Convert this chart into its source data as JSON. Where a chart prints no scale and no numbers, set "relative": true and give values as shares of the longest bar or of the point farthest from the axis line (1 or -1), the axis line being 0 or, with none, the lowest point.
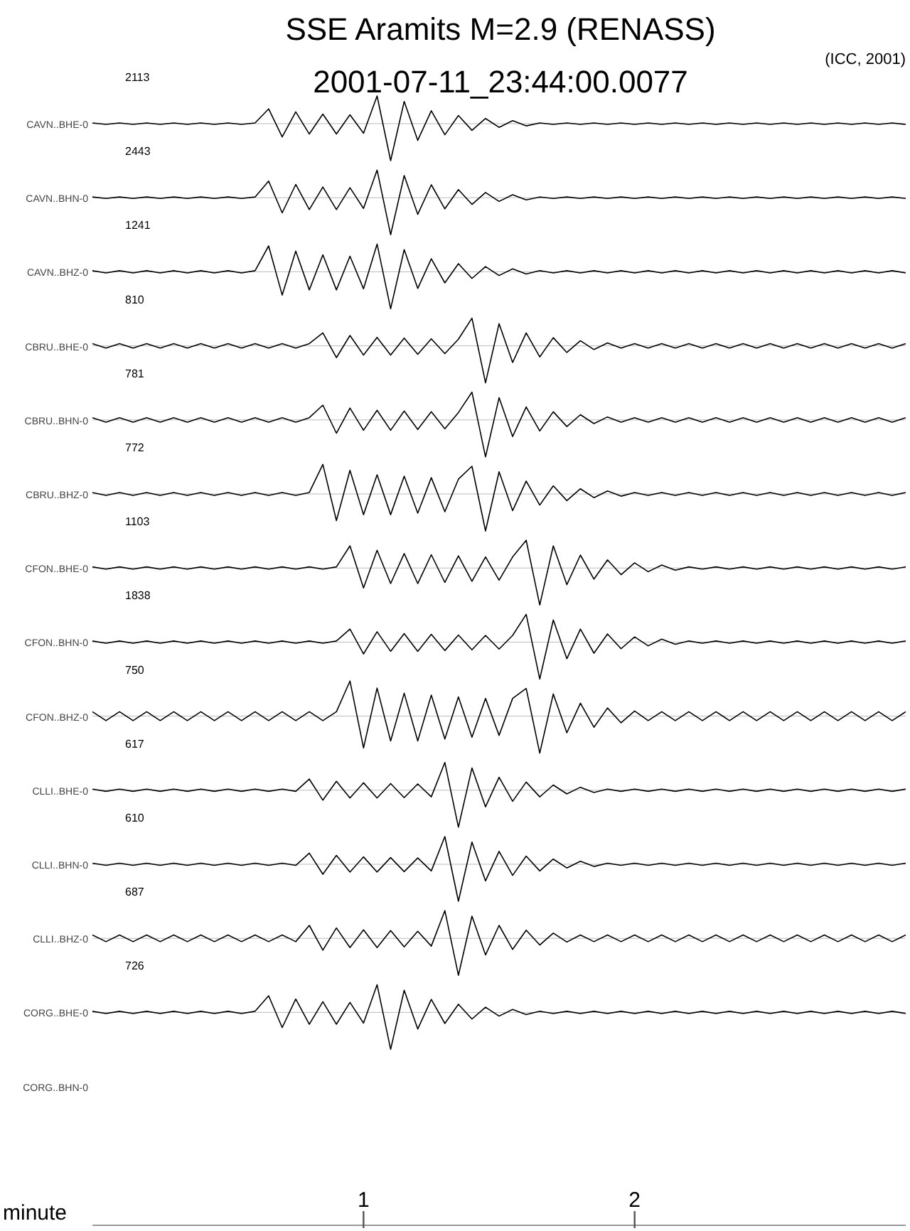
{
  "chart_data": [
    {
      "type": "line",
      "title": "SSE Aramits  M=2.9 (RENASS)",
      "subtitle": "2001-07-11_23:44:00.0077",
      "ylabel": "CAVN..BHE-0",
      "annotations": [
        "2113",
        "(ICC, 2001)"
      ],
      "relative": true,
      "xlim": [
        0,
        3
      ],
      "tick_labels": false,
      "x": [
        0,
        0.05,
        0.1,
        0.15,
        0.2,
        0.25,
        0.3,
        0.35,
        0.4,
        0.45,
        0.5,
        0.55,
        0.6,
        0.65,
        0.7,
        0.75,
        0.8,
        0.85,
        0.9,
        0.95,
        1,
        1.05,
        1.1,
        1.15,
        1.2,
        1.25,
        1.3,
        1.35,
        1.4,
        1.45,
        1.5,
        1.55,
        1.6,
        1.65,
        1.7,
        1.75,
        1.8,
        1.85,
        1.9,
        1.95,
        2,
        2.05,
        2.1,
        2.15,
        2.2,
        2.25,
        2.3,
        2.35,
        2.4,
        2.45,
        2.5,
        2.55,
        2.6,
        2.65,
        2.7,
        2.75,
        2.8,
        2.85,
        2.9,
        2.95,
        3
      ],
      "series": [
        {
          "color": "#000000",
          "values": [
            0.02,
            -0.02,
            0.02,
            -0.02,
            0.02,
            -0.02,
            0.02,
            -0.02,
            0.02,
            -0.02,
            0.02,
            -0.02,
            0.02,
            0.4,
            -0.36,
            0.32,
            -0.28,
            0.26,
            -0.28,
            0.24,
            -0.26,
            0.75,
            -1,
            0.6,
            -0.45,
            0.35,
            -0.3,
            0.22,
            -0.18,
            0.14,
            -0.1,
            0.08,
            -0.06,
            0.02,
            -0.02,
            0.02,
            -0.02,
            0.02,
            -0.02,
            0.02,
            -0.02,
            0.02,
            -0.02,
            0.02,
            -0.02,
            0.02,
            -0.02,
            0.02,
            -0.02,
            0.02,
            -0.02,
            0.02,
            -0.02,
            0.02,
            -0.02,
            0.02,
            -0.02,
            0.02,
            -0.02,
            0.02,
            -0.02
          ]
        }
      ]
    },
    {
      "type": "line",
      "ylabel": "CAVN..BHN-0",
      "annotations": [
        "2443"
      ],
      "relative": true,
      "xlim": [
        0,
        3
      ],
      "tick_labels": false,
      "x": [
        0,
        0.05,
        0.1,
        0.15,
        0.2,
        0.25,
        0.3,
        0.35,
        0.4,
        0.45,
        0.5,
        0.55,
        0.6,
        0.65,
        0.7,
        0.75,
        0.8,
        0.85,
        0.9,
        0.95,
        1,
        1.05,
        1.1,
        1.15,
        1.2,
        1.25,
        1.3,
        1.35,
        1.4,
        1.45,
        1.5,
        1.55,
        1.6,
        1.65,
        1.7,
        1.75,
        1.8,
        1.85,
        1.9,
        1.95,
        2,
        2.05,
        2.1,
        2.15,
        2.2,
        2.25,
        2.3,
        2.35,
        2.4,
        2.45,
        2.5,
        2.55,
        2.6,
        2.65,
        2.7,
        2.75,
        2.8,
        2.85,
        2.9,
        2.95,
        3
      ],
      "series": [
        {
          "color": "#000000",
          "values": [
            0.02,
            -0.02,
            0.02,
            -0.02,
            0.02,
            -0.02,
            0.02,
            -0.02,
            0.02,
            -0.02,
            0.02,
            -0.02,
            0.02,
            0.45,
            -0.41,
            0.36,
            -0.32,
            0.29,
            -0.32,
            0.27,
            -0.29,
            0.75,
            -1,
            0.6,
            -0.45,
            0.35,
            -0.3,
            0.22,
            -0.18,
            0.14,
            -0.1,
            0.08,
            -0.06,
            0.02,
            -0.02,
            0.02,
            -0.02,
            0.02,
            -0.02,
            0.02,
            -0.02,
            0.02,
            -0.02,
            0.02,
            -0.02,
            0.02,
            -0.02,
            0.02,
            -0.02,
            0.02,
            -0.02,
            0.02,
            -0.02,
            0.02,
            -0.02,
            0.02,
            -0.02,
            0.02,
            -0.02,
            0.02,
            -0.02
          ]
        }
      ]
    },
    {
      "type": "line",
      "ylabel": "CAVN..BHZ-0",
      "annotations": [
        "1241"
      ],
      "relative": true,
      "xlim": [
        0,
        3
      ],
      "tick_labels": false,
      "x": [
        0,
        0.05,
        0.1,
        0.15,
        0.2,
        0.25,
        0.3,
        0.35,
        0.4,
        0.45,
        0.5,
        0.55,
        0.6,
        0.65,
        0.7,
        0.75,
        0.8,
        0.85,
        0.9,
        0.95,
        1,
        1.05,
        1.1,
        1.15,
        1.2,
        1.25,
        1.3,
        1.35,
        1.4,
        1.45,
        1.5,
        1.55,
        1.6,
        1.65,
        1.7,
        1.75,
        1.8,
        1.85,
        1.9,
        1.95,
        2,
        2.05,
        2.1,
        2.15,
        2.2,
        2.25,
        2.3,
        2.35,
        2.4,
        2.45,
        2.5,
        2.55,
        2.6,
        2.65,
        2.7,
        2.75,
        2.8,
        2.85,
        2.9,
        2.95,
        3
      ],
      "series": [
        {
          "color": "#000000",
          "values": [
            0.03,
            -0.03,
            0.03,
            -0.03,
            0.03,
            -0.03,
            0.03,
            -0.03,
            0.03,
            -0.03,
            0.03,
            -0.03,
            0.03,
            0.7,
            -0.63,
            0.56,
            -0.49,
            0.46,
            -0.49,
            0.42,
            -0.46,
            0.75,
            -1,
            0.6,
            -0.45,
            0.35,
            -0.3,
            0.22,
            -0.18,
            0.14,
            -0.1,
            0.08,
            -0.06,
            0.03,
            -0.03,
            0.03,
            -0.03,
            0.03,
            -0.03,
            0.03,
            -0.03,
            0.03,
            -0.03,
            0.03,
            -0.03,
            0.03,
            -0.03,
            0.03,
            -0.03,
            0.03,
            -0.03,
            0.03,
            -0.03,
            0.03,
            -0.03,
            0.03,
            -0.03,
            0.03,
            -0.03,
            0.03,
            -0.03
          ]
        }
      ]
    },
    {
      "type": "line",
      "ylabel": "CBRU..BHE-0",
      "annotations": [
        "810"
      ],
      "relative": true,
      "xlim": [
        0,
        3
      ],
      "tick_labels": false,
      "x": [
        0,
        0.05,
        0.1,
        0.15,
        0.2,
        0.25,
        0.3,
        0.35,
        0.4,
        0.45,
        0.5,
        0.55,
        0.6,
        0.65,
        0.7,
        0.75,
        0.8,
        0.85,
        0.9,
        0.95,
        1,
        1.05,
        1.1,
        1.15,
        1.2,
        1.25,
        1.3,
        1.35,
        1.4,
        1.45,
        1.5,
        1.55,
        1.6,
        1.65,
        1.7,
        1.75,
        1.8,
        1.85,
        1.9,
        1.95,
        2,
        2.05,
        2.1,
        2.15,
        2.2,
        2.25,
        2.3,
        2.35,
        2.4,
        2.45,
        2.5,
        2.55,
        2.6,
        2.65,
        2.7,
        2.75,
        2.8,
        2.85,
        2.9,
        2.95,
        3
      ],
      "series": [
        {
          "color": "#000000",
          "values": [
            0.06,
            -0.06,
            0.06,
            -0.06,
            0.06,
            -0.06,
            0.06,
            -0.06,
            0.06,
            -0.06,
            0.06,
            -0.06,
            0.06,
            -0.06,
            0.06,
            -0.06,
            0.06,
            0.35,
            -0.32,
            0.28,
            -0.25,
            0.23,
            -0.25,
            0.21,
            -0.23,
            0.19,
            -0.21,
            0.18,
            0.75,
            -1,
            0.6,
            -0.45,
            0.35,
            -0.3,
            0.22,
            -0.18,
            0.14,
            -0.1,
            0.08,
            -0.06,
            0.06,
            -0.06,
            0.06,
            -0.06,
            0.06,
            -0.06,
            0.06,
            -0.06,
            0.06,
            -0.06,
            0.06,
            -0.06,
            0.06,
            -0.06,
            0.06,
            -0.06,
            0.06,
            -0.06,
            0.06,
            -0.06,
            0.06
          ]
        }
      ]
    },
    {
      "type": "line",
      "ylabel": "CBRU..BHN-0",
      "annotations": [
        "781"
      ],
      "relative": true,
      "xlim": [
        0,
        3
      ],
      "tick_labels": false,
      "x": [
        0,
        0.05,
        0.1,
        0.15,
        0.2,
        0.25,
        0.3,
        0.35,
        0.4,
        0.45,
        0.5,
        0.55,
        0.6,
        0.65,
        0.7,
        0.75,
        0.8,
        0.85,
        0.9,
        0.95,
        1,
        1.05,
        1.1,
        1.15,
        1.2,
        1.25,
        1.3,
        1.35,
        1.4,
        1.45,
        1.5,
        1.55,
        1.6,
        1.65,
        1.7,
        1.75,
        1.8,
        1.85,
        1.9,
        1.95,
        2,
        2.05,
        2.1,
        2.15,
        2.2,
        2.25,
        2.3,
        2.35,
        2.4,
        2.45,
        2.5,
        2.55,
        2.6,
        2.65,
        2.7,
        2.75,
        2.8,
        2.85,
        2.9,
        2.95,
        3
      ],
      "series": [
        {
          "color": "#000000",
          "values": [
            0.06,
            -0.06,
            0.06,
            -0.06,
            0.06,
            -0.06,
            0.06,
            -0.06,
            0.06,
            -0.06,
            0.06,
            -0.06,
            0.06,
            -0.06,
            0.06,
            -0.06,
            0.06,
            0.4,
            -0.36,
            0.32,
            -0.28,
            0.26,
            -0.28,
            0.24,
            -0.26,
            0.22,
            -0.24,
            0.2,
            0.75,
            -1,
            0.6,
            -0.45,
            0.35,
            -0.3,
            0.22,
            -0.18,
            0.14,
            -0.1,
            0.08,
            -0.06,
            0.06,
            -0.06,
            0.06,
            -0.06,
            0.06,
            -0.06,
            0.06,
            -0.06,
            0.06,
            -0.06,
            0.06,
            -0.06,
            0.06,
            -0.06,
            0.06,
            -0.06,
            0.06,
            -0.06,
            0.06,
            -0.06,
            0.06
          ]
        }
      ]
    },
    {
      "type": "line",
      "ylabel": "CBRU..BHZ-0",
      "annotations": [
        "772"
      ],
      "relative": true,
      "xlim": [
        0,
        3
      ],
      "tick_labels": false,
      "x": [
        0,
        0.05,
        0.1,
        0.15,
        0.2,
        0.25,
        0.3,
        0.35,
        0.4,
        0.45,
        0.5,
        0.55,
        0.6,
        0.65,
        0.7,
        0.75,
        0.8,
        0.85,
        0.9,
        0.95,
        1,
        1.05,
        1.1,
        1.15,
        1.2,
        1.25,
        1.3,
        1.35,
        1.4,
        1.45,
        1.5,
        1.55,
        1.6,
        1.65,
        1.7,
        1.75,
        1.8,
        1.85,
        1.9,
        1.95,
        2,
        2.05,
        2.1,
        2.15,
        2.2,
        2.25,
        2.3,
        2.35,
        2.4,
        2.45,
        2.5,
        2.55,
        2.6,
        2.65,
        2.7,
        2.75,
        2.8,
        2.85,
        2.9,
        2.95,
        3
      ],
      "series": [
        {
          "color": "#000000",
          "values": [
            0.04,
            -0.04,
            0.04,
            -0.04,
            0.04,
            -0.04,
            0.04,
            -0.04,
            0.04,
            -0.04,
            0.04,
            -0.04,
            0.04,
            -0.04,
            0.04,
            -0.04,
            0.04,
            0.8,
            -0.72,
            0.64,
            -0.56,
            0.52,
            -0.56,
            0.48,
            -0.52,
            0.44,
            -0.48,
            0.4,
            0.75,
            -1,
            0.6,
            -0.45,
            0.35,
            -0.3,
            0.22,
            -0.18,
            0.14,
            -0.1,
            0.08,
            -0.06,
            0.04,
            -0.04,
            0.04,
            -0.04,
            0.04,
            -0.04,
            0.04,
            -0.04,
            0.04,
            -0.04,
            0.04,
            -0.04,
            0.04,
            -0.04,
            0.04,
            -0.04,
            0.04,
            -0.04,
            0.04,
            -0.04,
            0.04
          ]
        }
      ]
    },
    {
      "type": "line",
      "ylabel": "CFON..BHE-0",
      "annotations": [
        "1103"
      ],
      "relative": true,
      "xlim": [
        0,
        3
      ],
      "tick_labels": false,
      "x": [
        0,
        0.05,
        0.1,
        0.15,
        0.2,
        0.25,
        0.3,
        0.35,
        0.4,
        0.45,
        0.5,
        0.55,
        0.6,
        0.65,
        0.7,
        0.75,
        0.8,
        0.85,
        0.9,
        0.95,
        1,
        1.05,
        1.1,
        1.15,
        1.2,
        1.25,
        1.3,
        1.35,
        1.4,
        1.45,
        1.5,
        1.55,
        1.6,
        1.65,
        1.7,
        1.75,
        1.8,
        1.85,
        1.9,
        1.95,
        2,
        2.05,
        2.1,
        2.15,
        2.2,
        2.25,
        2.3,
        2.35,
        2.4,
        2.45,
        2.5,
        2.55,
        2.6,
        2.65,
        2.7,
        2.75,
        2.8,
        2.85,
        2.9,
        2.95,
        3
      ],
      "series": [
        {
          "color": "#000000",
          "values": [
            0.03,
            -0.03,
            0.03,
            -0.03,
            0.03,
            -0.03,
            0.03,
            -0.03,
            0.03,
            -0.03,
            0.03,
            -0.03,
            0.03,
            -0.03,
            0.03,
            -0.03,
            0.03,
            -0.03,
            0.03,
            0.6,
            -0.54,
            0.48,
            -0.42,
            0.39,
            -0.42,
            0.36,
            -0.39,
            0.33,
            -0.36,
            0.3,
            -0.33,
            0.3,
            0.75,
            -1,
            0.6,
            -0.45,
            0.35,
            -0.3,
            0.22,
            -0.18,
            0.14,
            -0.1,
            0.08,
            -0.06,
            0.03,
            -0.03,
            0.03,
            -0.03,
            0.03,
            -0.03,
            0.03,
            -0.03,
            0.03,
            -0.03,
            0.03,
            -0.03,
            0.03,
            -0.03,
            0.03,
            -0.03,
            0.03
          ]
        }
      ]
    },
    {
      "type": "line",
      "ylabel": "CFON..BHN-0",
      "annotations": [
        "1838"
      ],
      "relative": true,
      "xlim": [
        0,
        3
      ],
      "tick_labels": false,
      "x": [
        0,
        0.05,
        0.1,
        0.15,
        0.2,
        0.25,
        0.3,
        0.35,
        0.4,
        0.45,
        0.5,
        0.55,
        0.6,
        0.65,
        0.7,
        0.75,
        0.8,
        0.85,
        0.9,
        0.95,
        1,
        1.05,
        1.1,
        1.15,
        1.2,
        1.25,
        1.3,
        1.35,
        1.4,
        1.45,
        1.5,
        1.55,
        1.6,
        1.65,
        1.7,
        1.75,
        1.8,
        1.85,
        1.9,
        1.95,
        2,
        2.05,
        2.1,
        2.15,
        2.2,
        2.25,
        2.3,
        2.35,
        2.4,
        2.45,
        2.5,
        2.55,
        2.6,
        2.65,
        2.7,
        2.75,
        2.8,
        2.85,
        2.9,
        2.95,
        3
      ],
      "series": [
        {
          "color": "#000000",
          "values": [
            0.03,
            -0.03,
            0.03,
            -0.03,
            0.03,
            -0.03,
            0.03,
            -0.03,
            0.03,
            -0.03,
            0.03,
            -0.03,
            0.03,
            -0.03,
            0.03,
            -0.03,
            0.03,
            -0.03,
            0.03,
            0.35,
            -0.32,
            0.28,
            -0.25,
            0.23,
            -0.25,
            0.21,
            -0.23,
            0.19,
            -0.21,
            0.18,
            -0.19,
            0.18,
            0.75,
            -1,
            0.6,
            -0.45,
            0.35,
            -0.3,
            0.22,
            -0.18,
            0.14,
            -0.1,
            0.08,
            -0.06,
            0.03,
            -0.03,
            0.03,
            -0.03,
            0.03,
            -0.03,
            0.03,
            -0.03,
            0.03,
            -0.03,
            0.03,
            -0.03,
            0.03,
            -0.03,
            0.03,
            -0.03,
            0.03
          ]
        }
      ]
    },
    {
      "type": "line",
      "ylabel": "CFON..BHZ-0",
      "annotations": [
        "750"
      ],
      "relative": true,
      "xlim": [
        0,
        3
      ],
      "tick_labels": false,
      "x": [
        0,
        0.05,
        0.1,
        0.15,
        0.2,
        0.25,
        0.3,
        0.35,
        0.4,
        0.45,
        0.5,
        0.55,
        0.6,
        0.65,
        0.7,
        0.75,
        0.8,
        0.85,
        0.9,
        0.95,
        1,
        1.05,
        1.1,
        1.15,
        1.2,
        1.25,
        1.3,
        1.35,
        1.4,
        1.45,
        1.5,
        1.55,
        1.6,
        1.65,
        1.7,
        1.75,
        1.8,
        1.85,
        1.9,
        1.95,
        2,
        2.05,
        2.1,
        2.15,
        2.2,
        2.25,
        2.3,
        2.35,
        2.4,
        2.45,
        2.5,
        2.55,
        2.6,
        2.65,
        2.7,
        2.75,
        2.8,
        2.85,
        2.9,
        2.95,
        3
      ],
      "series": [
        {
          "color": "#000000",
          "values": [
            0.12,
            -0.12,
            0.12,
            -0.12,
            0.12,
            -0.12,
            0.12,
            -0.12,
            0.12,
            -0.12,
            0.12,
            -0.12,
            0.12,
            -0.12,
            0.12,
            -0.12,
            0.12,
            -0.12,
            0.12,
            0.95,
            -0.86,
            0.76,
            -0.67,
            0.62,
            -0.67,
            0.57,
            -0.62,
            0.52,
            -0.57,
            0.48,
            -0.52,
            0.48,
            0.75,
            -1,
            0.6,
            -0.45,
            0.35,
            -0.3,
            0.22,
            -0.18,
            0.14,
            -0.12,
            0.12,
            -0.12,
            0.12,
            -0.12,
            0.12,
            -0.12,
            0.12,
            -0.12,
            0.12,
            -0.12,
            0.12,
            -0.12,
            0.12,
            -0.12,
            0.12,
            -0.12,
            0.12,
            -0.12,
            0.12
          ]
        }
      ]
    },
    {
      "type": "line",
      "ylabel": "CLLI..BHE-0",
      "annotations": [
        "617"
      ],
      "relative": true,
      "xlim": [
        0,
        3
      ],
      "tick_labels": false,
      "x": [
        0,
        0.05,
        0.1,
        0.15,
        0.2,
        0.25,
        0.3,
        0.35,
        0.4,
        0.45,
        0.5,
        0.55,
        0.6,
        0.65,
        0.7,
        0.75,
        0.8,
        0.85,
        0.9,
        0.95,
        1,
        1.05,
        1.1,
        1.15,
        1.2,
        1.25,
        1.3,
        1.35,
        1.4,
        1.45,
        1.5,
        1.55,
        1.6,
        1.65,
        1.7,
        1.75,
        1.8,
        1.85,
        1.9,
        1.95,
        2,
        2.05,
        2.1,
        2.15,
        2.2,
        2.25,
        2.3,
        2.35,
        2.4,
        2.45,
        2.5,
        2.55,
        2.6,
        2.65,
        2.7,
        2.75,
        2.8,
        2.85,
        2.9,
        2.95,
        3
      ],
      "series": [
        {
          "color": "#000000",
          "values": [
            0.03,
            -0.03,
            0.03,
            -0.03,
            0.03,
            -0.03,
            0.03,
            -0.03,
            0.03,
            -0.03,
            0.03,
            -0.03,
            0.03,
            -0.03,
            0.03,
            -0.03,
            0.3,
            -0.27,
            0.24,
            -0.21,
            0.2,
            -0.21,
            0.18,
            -0.2,
            0.17,
            -0.18,
            0.75,
            -1,
            0.6,
            -0.45,
            0.35,
            -0.3,
            0.22,
            -0.18,
            0.14,
            -0.1,
            0.08,
            -0.06,
            0.03,
            -0.03,
            0.03,
            -0.03,
            0.03,
            -0.03,
            0.03,
            -0.03,
            0.03,
            -0.03,
            0.03,
            -0.03,
            0.03,
            -0.03,
            0.03,
            -0.03,
            0.03,
            -0.03,
            0.03,
            -0.03,
            0.03,
            -0.03,
            0.03
          ]
        }
      ]
    },
    {
      "type": "line",
      "ylabel": "CLLI..BHN-0",
      "annotations": [
        "610"
      ],
      "relative": true,
      "xlim": [
        0,
        3
      ],
      "tick_labels": false,
      "x": [
        0,
        0.05,
        0.1,
        0.15,
        0.2,
        0.25,
        0.3,
        0.35,
        0.4,
        0.45,
        0.5,
        0.55,
        0.6,
        0.65,
        0.7,
        0.75,
        0.8,
        0.85,
        0.9,
        0.95,
        1,
        1.05,
        1.1,
        1.15,
        1.2,
        1.25,
        1.3,
        1.35,
        1.4,
        1.45,
        1.5,
        1.55,
        1.6,
        1.65,
        1.7,
        1.75,
        1.8,
        1.85,
        1.9,
        1.95,
        2,
        2.05,
        2.1,
        2.15,
        2.2,
        2.25,
        2.3,
        2.35,
        2.4,
        2.45,
        2.5,
        2.55,
        2.6,
        2.65,
        2.7,
        2.75,
        2.8,
        2.85,
        2.9,
        2.95,
        3
      ],
      "series": [
        {
          "color": "#000000",
          "values": [
            0.03,
            -0.03,
            0.03,
            -0.03,
            0.03,
            -0.03,
            0.03,
            -0.03,
            0.03,
            -0.03,
            0.03,
            -0.03,
            0.03,
            -0.03,
            0.03,
            -0.03,
            0.3,
            -0.27,
            0.24,
            -0.21,
            0.2,
            -0.21,
            0.18,
            -0.2,
            0.17,
            -0.18,
            0.75,
            -1,
            0.6,
            -0.45,
            0.35,
            -0.3,
            0.22,
            -0.18,
            0.14,
            -0.1,
            0.08,
            -0.06,
            0.03,
            -0.03,
            0.03,
            -0.03,
            0.03,
            -0.03,
            0.03,
            -0.03,
            0.03,
            -0.03,
            0.03,
            -0.03,
            0.03,
            -0.03,
            0.03,
            -0.03,
            0.03,
            -0.03,
            0.03,
            -0.03,
            0.03,
            -0.03,
            0.03
          ]
        }
      ]
    },
    {
      "type": "line",
      "ylabel": "CLLI..BHZ-0",
      "annotations": [
        "687"
      ],
      "relative": true,
      "xlim": [
        0,
        3
      ],
      "tick_labels": false,
      "x": [
        0,
        0.05,
        0.1,
        0.15,
        0.2,
        0.25,
        0.3,
        0.35,
        0.4,
        0.45,
        0.5,
        0.55,
        0.6,
        0.65,
        0.7,
        0.75,
        0.8,
        0.85,
        0.9,
        0.95,
        1,
        1.05,
        1.1,
        1.15,
        1.2,
        1.25,
        1.3,
        1.35,
        1.4,
        1.45,
        1.5,
        1.55,
        1.6,
        1.65,
        1.7,
        1.75,
        1.8,
        1.85,
        1.9,
        1.95,
        2,
        2.05,
        2.1,
        2.15,
        2.2,
        2.25,
        2.3,
        2.35,
        2.4,
        2.45,
        2.5,
        2.55,
        2.6,
        2.65,
        2.7,
        2.75,
        2.8,
        2.85,
        2.9,
        2.95,
        3
      ],
      "series": [
        {
          "color": "#000000",
          "values": [
            0.09,
            -0.09,
            0.09,
            -0.09,
            0.09,
            -0.09,
            0.09,
            -0.09,
            0.09,
            -0.09,
            0.09,
            -0.09,
            0.09,
            -0.09,
            0.09,
            -0.09,
            0.35,
            -0.32,
            0.28,
            -0.25,
            0.23,
            -0.25,
            0.21,
            -0.23,
            0.19,
            -0.21,
            0.75,
            -1,
            0.6,
            -0.45,
            0.35,
            -0.3,
            0.22,
            -0.18,
            0.14,
            -0.1,
            0.09,
            -0.09,
            0.09,
            -0.09,
            0.09,
            -0.09,
            0.09,
            -0.09,
            0.09,
            -0.09,
            0.09,
            -0.09,
            0.09,
            -0.09,
            0.09,
            -0.09,
            0.09,
            -0.09,
            0.09,
            -0.09,
            0.09,
            -0.09,
            0.09,
            -0.09,
            0.09
          ]
        }
      ]
    },
    {
      "type": "line",
      "ylabel": "CORG..BHE-0",
      "annotations": [
        "726"
      ],
      "relative": true,
      "xlim": [
        0,
        3
      ],
      "tick_labels": "x",
      "xlabel": "minute",
      "xticks": [
        1,
        2
      ],
      "x": [
        0,
        0.05,
        0.1,
        0.15,
        0.2,
        0.25,
        0.3,
        0.35,
        0.4,
        0.45,
        0.5,
        0.55,
        0.6,
        0.65,
        0.7,
        0.75,
        0.8,
        0.85,
        0.9,
        0.95,
        1,
        1.05,
        1.1,
        1.15,
        1.2,
        1.25,
        1.3,
        1.35,
        1.4,
        1.45,
        1.5,
        1.55,
        1.6,
        1.65,
        1.7,
        1.75,
        1.8,
        1.85,
        1.9,
        1.95,
        2,
        2.05,
        2.1,
        2.15,
        2.2,
        2.25,
        2.3,
        2.35,
        2.4,
        2.45,
        2.5,
        2.55,
        2.6,
        2.65,
        2.7,
        2.75,
        2.8,
        2.85,
        2.9,
        2.95,
        3
      ],
      "series": [
        {
          "color": "#000000",
          "values": [
            0.03,
            -0.03,
            0.03,
            -0.03,
            0.03,
            -0.03,
            0.03,
            -0.03,
            0.03,
            -0.03,
            0.03,
            -0.03,
            0.03,
            0.45,
            -0.41,
            0.36,
            -0.32,
            0.29,
            -0.32,
            0.27,
            -0.29,
            0.75,
            -1,
            0.6,
            -0.45,
            0.35,
            -0.3,
            0.22,
            -0.18,
            0.14,
            -0.1,
            0.08,
            -0.06,
            0.03,
            -0.03,
            0.03,
            -0.03,
            0.03,
            -0.03,
            0.03,
            -0.03,
            0.03,
            -0.03,
            0.03,
            -0.03,
            0.03,
            -0.03,
            0.03,
            -0.03,
            0.03,
            -0.03,
            0.03,
            -0.03,
            0.03,
            -0.03,
            0.03,
            -0.03,
            0.03,
            -0.03,
            0.03,
            -0.03
          ]
        }
      ]
    },
    {
      "type": "other",
      "ylabel": "CORG..BHN-0"
    }
  ]
}
